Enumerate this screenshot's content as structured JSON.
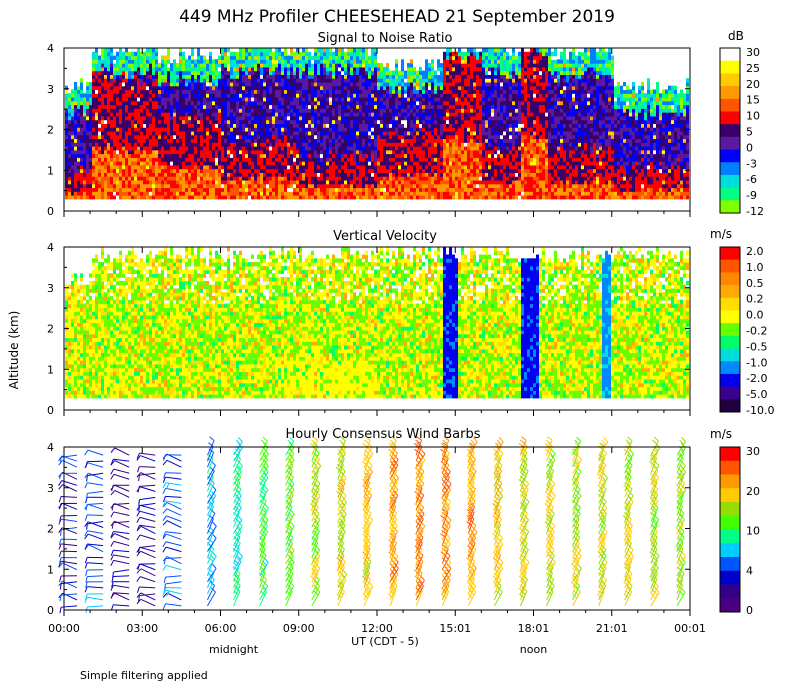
{
  "figure": {
    "title": "449 MHz Profiler CHEESEHEAD 21 September 2019",
    "ylabel": "Altitude (km)",
    "xlabel": "UT  (CDT - 5)",
    "x_ticks": [
      "00:00",
      "03:00",
      "06:00",
      "09:00",
      "12:00",
      "15:01",
      "18:01",
      "21:01",
      "00:01"
    ],
    "x_sublabels": [
      {
        "text": "midnight",
        "hour": 6.5
      },
      {
        "text": "noon",
        "hour": 18.0
      }
    ],
    "y_ticks": [
      "0",
      "1",
      "2",
      "3",
      "4"
    ],
    "footnote": "Simple filtering applied"
  },
  "chart_data": [
    {
      "type": "heatmap",
      "title": "Signal to Noise Ratio",
      "x_range_hours": [
        0,
        24
      ],
      "ylim_km": [
        0,
        4
      ],
      "data_altitude_range_km": [
        0.3,
        4.0
      ],
      "colorbar": {
        "unit": "dB",
        "labels": [
          "30",
          "25",
          "20",
          "15",
          "10",
          "5",
          "0",
          "-3",
          "-6",
          "-9",
          "-12"
        ],
        "colors": [
          "#ffffff",
          "#ffff00",
          "#ffcc00",
          "#ff9900",
          "#ff5500",
          "#ff0000",
          "#3a006a",
          "#5a1aa0",
          "#0000ff",
          "#0080ff",
          "#00dddd",
          "#00ff80",
          "#80ff00"
        ]
      },
      "profile_segments": [
        {
          "t0": 0.0,
          "t1": 1.0,
          "top_km": 3.0,
          "strong_top_km": 1.0
        },
        {
          "t0": 1.0,
          "t1": 3.5,
          "top_km": 4.0,
          "strong_top_km": 3.2
        },
        {
          "t0": 3.5,
          "t1": 6.0,
          "top_km": 3.8,
          "strong_top_km": 2.3
        },
        {
          "t0": 6.0,
          "t1": 9.0,
          "top_km": 4.0,
          "strong_top_km": 1.7
        },
        {
          "t0": 9.0,
          "t1": 12.0,
          "top_km": 4.0,
          "strong_top_km": 1.3
        },
        {
          "t0": 12.0,
          "t1": 14.5,
          "top_km": 3.6,
          "strong_top_km": 1.9
        },
        {
          "t0": 14.5,
          "t1": 16.0,
          "top_km": 4.0,
          "strong_top_km": 3.8
        },
        {
          "t0": 16.0,
          "t1": 17.5,
          "top_km": 4.0,
          "strong_top_km": 1.5
        },
        {
          "t0": 17.5,
          "t1": 18.5,
          "top_km": 4.0,
          "strong_top_km": 3.9
        },
        {
          "t0": 18.5,
          "t1": 21.0,
          "top_km": 3.9,
          "strong_top_km": 1.5
        },
        {
          "t0": 21.0,
          "t1": 24.0,
          "top_km": 3.0,
          "strong_top_km": 1.1
        }
      ]
    },
    {
      "type": "heatmap",
      "title": "Vertical Velocity",
      "x_range_hours": [
        0,
        24
      ],
      "ylim_km": [
        0,
        4
      ],
      "data_altitude_range_km": [
        0.3,
        4.0
      ],
      "colorbar": {
        "unit": "m/s",
        "labels": [
          "2.0",
          "1.0",
          "0.5",
          "0.2",
          "0.0",
          "-0.2",
          "-0.5",
          "-1.0",
          "-2.0",
          "-5.0",
          "-10.0"
        ],
        "colors": [
          "#ff0000",
          "#ff5500",
          "#ff8800",
          "#ffaa00",
          "#ffdd00",
          "#ffff00",
          "#66ff00",
          "#00ff66",
          "#00dddd",
          "#0088ff",
          "#0000ee",
          "#3a0090",
          "#200040"
        ]
      },
      "downdraft_bands": [
        {
          "t0": 14.5,
          "t1": 15.0,
          "value": -5.0
        },
        {
          "t0": 17.5,
          "t1": 18.2,
          "value": -5.0
        },
        {
          "t0": 20.6,
          "t1": 20.9,
          "value": -2.0
        }
      ]
    },
    {
      "type": "wind_barbs",
      "title": "Hourly Consensus Wind Barbs",
      "x_range_hours": [
        0,
        24
      ],
      "ylim_km": [
        0,
        4
      ],
      "colorbar": {
        "unit": "m/s",
        "labels": [
          "30",
          "20",
          "10",
          "4",
          "0"
        ],
        "colors": [
          "#ff0000",
          "#ff5500",
          "#ff9900",
          "#ffcc00",
          "#99dd00",
          "#44ff00",
          "#00ff88",
          "#00ccff",
          "#0055ff",
          "#0000cc",
          "#330088",
          "#4b0082"
        ]
      },
      "hours": [
        0,
        1,
        2,
        3,
        4,
        5,
        6,
        7,
        8,
        9,
        10,
        11,
        12,
        13,
        14,
        15,
        16,
        17,
        18,
        19,
        20,
        21,
        22,
        23
      ],
      "wind_speed_mps_by_hour": [
        6,
        7,
        4,
        3,
        8,
        10,
        13,
        15,
        17,
        19,
        21,
        23,
        24,
        25,
        25,
        24,
        22,
        21,
        20,
        20,
        20,
        20,
        20,
        19
      ],
      "altitude_range_km": [
        0.1,
        3.8
      ]
    }
  ]
}
